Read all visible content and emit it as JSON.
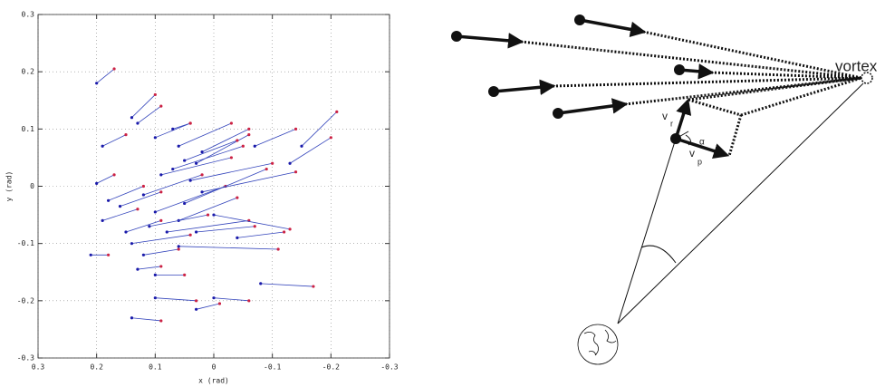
{
  "chart_data": {
    "type": "segments",
    "xlabel": "x (rad)",
    "ylabel": "y (rad)",
    "xlim": [
      0.3,
      -0.3
    ],
    "ylim": [
      -0.3,
      0.3
    ],
    "xticks": [
      0.3,
      0.2,
      0.1,
      0,
      -0.1,
      -0.2,
      -0.3
    ],
    "yticks": [
      -0.3,
      -0.2,
      -0.1,
      0,
      0.1,
      0.2,
      0.3
    ],
    "grid": true,
    "line_color": "#3344bb",
    "start_color": "#1a1aaa",
    "end_color": "#cc2244",
    "segments": {
      "x": [
        0.2,
        0.14,
        0.13,
        0.1,
        0.19,
        0.06,
        -0.07,
        -0.15,
        -0.13,
        0.2,
        0.18,
        0.19,
        0.16,
        0.12,
        0.1,
        0.06,
        0.08,
        0.14,
        0.11,
        0.05,
        0.04,
        0.07,
        0.03,
        0.09,
        0.02,
        0.0,
        0.12,
        0.06,
        0.21,
        0.13,
        0.1,
        0.1,
        0.03,
        0.0,
        -0.08,
        0.14,
        0.15,
        0.02,
        0.07,
        -0.04,
        0.03,
        0.05
      ],
      "y": [
        0.18,
        0.12,
        0.11,
        0.085,
        0.07,
        0.07,
        0.07,
        0.07,
        0.04,
        0.005,
        -0.025,
        -0.06,
        -0.035,
        -0.015,
        -0.045,
        -0.06,
        -0.08,
        -0.1,
        -0.07,
        -0.03,
        0.01,
        0.03,
        0.04,
        0.02,
        -0.01,
        -0.05,
        -0.12,
        -0.105,
        -0.12,
        -0.145,
        -0.155,
        -0.195,
        -0.215,
        -0.195,
        -0.17,
        -0.23,
        -0.08,
        0.06,
        0.1,
        -0.09,
        -0.08,
        0.045
      ],
      "x_end": [
        0.17,
        0.1,
        0.09,
        0.04,
        0.15,
        -0.03,
        -0.14,
        -0.21,
        -0.2,
        0.17,
        0.12,
        0.13,
        0.09,
        0.02,
        -0.02,
        -0.04,
        -0.06,
        0.04,
        0.01,
        -0.09,
        -0.1,
        -0.05,
        -0.06,
        -0.03,
        -0.14,
        -0.13,
        0.06,
        -0.11,
        0.18,
        0.09,
        0.05,
        0.03,
        -0.01,
        -0.06,
        -0.17,
        0.09,
        0.09,
        -0.06,
        0.04,
        -0.12,
        -0.07,
        -0.04
      ],
      "y_end": [
        0.205,
        0.16,
        0.14,
        0.11,
        0.09,
        0.11,
        0.1,
        0.13,
        0.085,
        0.02,
        0.0,
        -0.04,
        -0.01,
        0.02,
        0.0,
        -0.02,
        -0.06,
        -0.085,
        -0.05,
        0.03,
        0.04,
        0.07,
        0.09,
        0.05,
        0.025,
        -0.075,
        -0.11,
        -0.11,
        -0.12,
        -0.14,
        -0.155,
        -0.2,
        -0.205,
        -0.2,
        -0.175,
        -0.235,
        -0.06,
        0.1,
        0.11,
        -0.08,
        -0.07,
        0.08
      ]
    }
  },
  "diagram": {
    "vortex_label": "vortex",
    "radial_velocity": {
      "symbol": "v",
      "subscript": "r"
    },
    "proper_velocity": {
      "symbol": "v",
      "subscript": "p"
    },
    "angle": "α"
  }
}
